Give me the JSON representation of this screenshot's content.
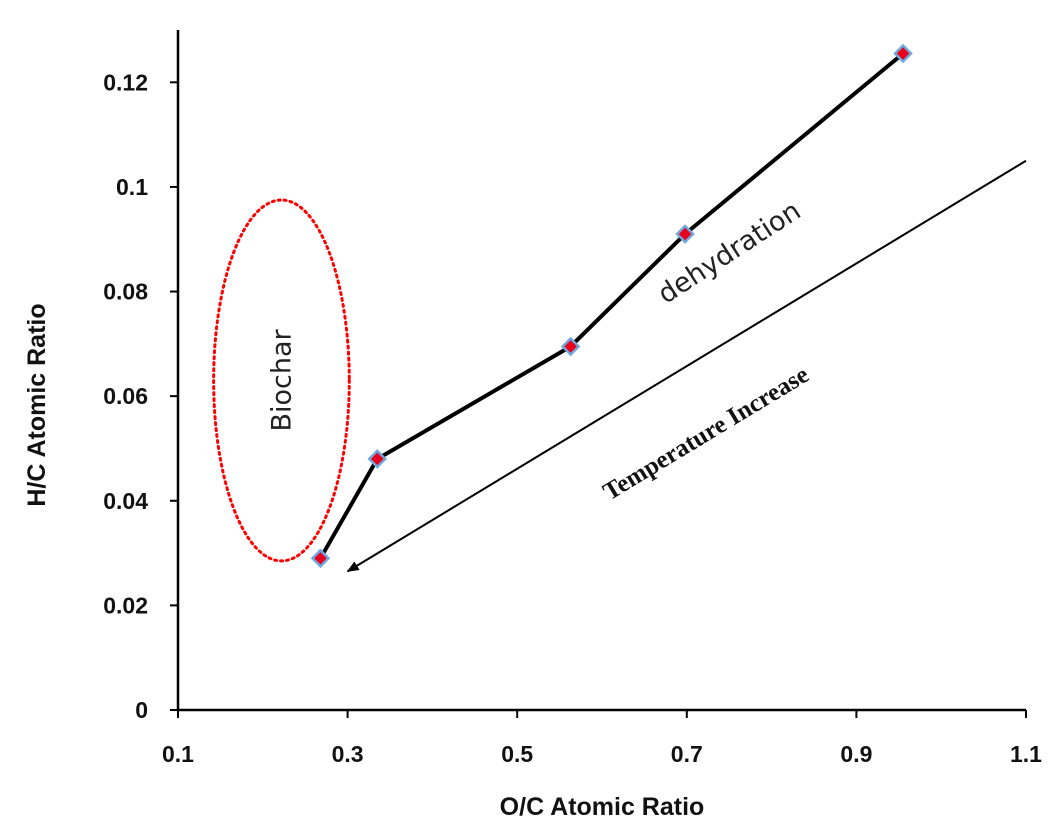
{
  "chart_data": {
    "type": "line",
    "xlabel": "O/C Atomic Ratio",
    "ylabel": "H/C Atomic Ratio",
    "xlim": [
      0.1,
      1.1
    ],
    "ylim": [
      0,
      0.13
    ],
    "x_ticks": [
      "0.1",
      "0.3",
      "0.5",
      "0.7",
      "0.9",
      "1.1"
    ],
    "y_ticks": [
      "0",
      "0.02",
      "0.04",
      "0.06",
      "0.08",
      "0.1",
      "0.12"
    ],
    "grid": false,
    "series": [
      {
        "x": [
          0.268,
          0.335,
          0.563,
          0.698,
          0.955
        ],
        "y": [
          0.029,
          0.048,
          0.0695,
          0.091,
          0.1255
        ],
        "color": "#000000",
        "marker_fill": "#e8001c",
        "marker_edge": "#6fa8dc"
      }
    ],
    "annotations": [
      {
        "id": "biochar",
        "text": "Biochar",
        "x": 0.222,
        "y": 0.063,
        "ellipse_rx": 0.08,
        "ellipse_ry": 0.0345,
        "color": "#ff0000"
      },
      {
        "id": "dehydration",
        "text": "dehydration",
        "x": 0.75,
        "y": 0.0875
      },
      {
        "id": "temperature",
        "text": "Temperature Increase",
        "x_from": 1.1,
        "y_from": 0.105,
        "x_to": 0.3,
        "y_to": 0.0265
      }
    ]
  }
}
